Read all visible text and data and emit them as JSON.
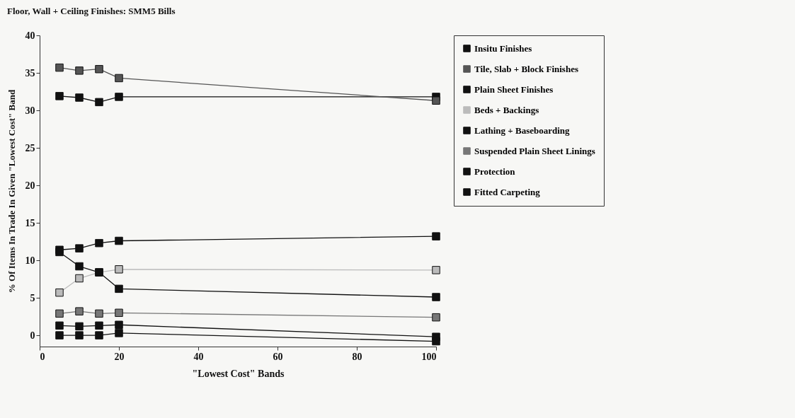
{
  "chart_data": {
    "type": "line",
    "title": "Floor, Wall + Ceiling Finishes: SMM5 Bills",
    "xlabel": "\"Lowest Cost\" Bands",
    "ylabel": "% Of Items In Trade In Given \"Lowest Cost\" Band",
    "x": [
      5,
      10,
      15,
      20,
      100
    ],
    "series": [
      {
        "name": "Insitu Finishes",
        "color": "#111111",
        "values": [
          31.9,
          31.7,
          31.1,
          31.8,
          31.8
        ]
      },
      {
        "name": "Tile, Slab + Block Finishes",
        "color": "#555555",
        "values": [
          35.7,
          35.3,
          35.5,
          34.3,
          31.3
        ]
      },
      {
        "name": "Plain Sheet Finishes",
        "color": "#111111",
        "values": [
          11.4,
          11.6,
          12.3,
          12.6,
          13.2
        ]
      },
      {
        "name": "Beds + Backings",
        "color": "#bbbbbb",
        "values": [
          5.7,
          7.6,
          8.4,
          8.8,
          8.7
        ]
      },
      {
        "name": "Lathing + Baseboarding",
        "color": "#111111",
        "values": [
          11.1,
          9.2,
          8.4,
          6.2,
          5.1
        ]
      },
      {
        "name": "Suspended Plain Sheet Linings",
        "color": "#777777",
        "values": [
          2.9,
          3.2,
          2.9,
          3.0,
          2.4
        ]
      },
      {
        "name": "Protection",
        "color": "#111111",
        "values": [
          1.3,
          1.2,
          1.3,
          1.4,
          -0.2
        ]
      },
      {
        "name": "Fitted Carpeting",
        "color": "#111111",
        "values": [
          0,
          0,
          0,
          0.3,
          -0.8
        ]
      }
    ],
    "xlim": [
      0,
      100
    ],
    "xticks": [
      0,
      20,
      40,
      60,
      80,
      100
    ],
    "ylim": [
      -1.5,
      40
    ],
    "yticks": [
      0,
      5,
      10,
      15,
      20,
      25,
      30,
      35,
      40
    ],
    "grid": false,
    "legend": "right",
    "marker": "square",
    "line_style": "solid"
  }
}
